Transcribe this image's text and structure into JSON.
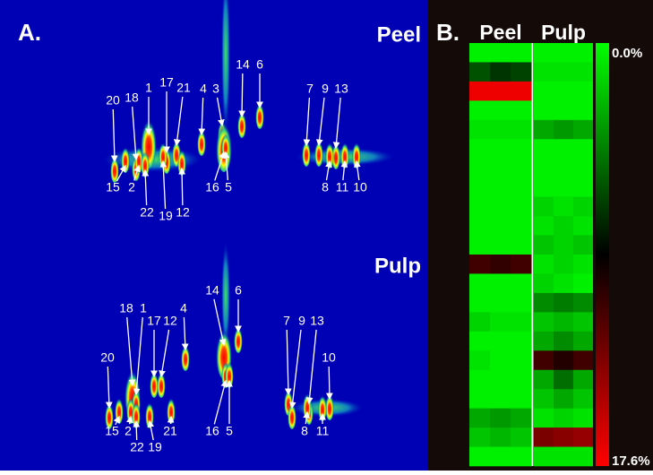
{
  "panel_a": {
    "label": "A.",
    "chromatograms": [
      {
        "title": "Peel",
        "peaks": [
          "20",
          "18",
          "1",
          "17",
          "21",
          "4",
          "3",
          "14",
          "6",
          "7",
          "9",
          "13",
          "15",
          "2",
          "22",
          "19",
          "12",
          "16",
          "5",
          "8",
          "11",
          "10"
        ]
      },
      {
        "title": "Pulp",
        "peaks": [
          "14",
          "6",
          "18",
          "1",
          "17",
          "12",
          "4",
          "7",
          "9",
          "13",
          "20",
          "10",
          "15",
          "2",
          "22",
          "19",
          "21",
          "16",
          "5",
          "8",
          "11"
        ]
      }
    ]
  },
  "panel_b": {
    "label": "B.",
    "columns": [
      "Peel",
      "Pulp"
    ],
    "colors": [
      "#00ff00",
      "#000000",
      "#ff0000"
    ],
    "colorbar": [
      {
        "value": 0,
        "label": "0.0%"
      },
      {
        "value": 17.6,
        "label": "17.6%"
      }
    ],
    "heatmap": [
      [
        0.5,
        0.5,
        0.5,
        0.5,
        0.5,
        0.5
      ],
      [
        6,
        7,
        6.5,
        1,
        1,
        1
      ],
      [
        17,
        17,
        17,
        0.5,
        0.5,
        0.5
      ],
      [
        0.5,
        0.5,
        0.5,
        0.5,
        0.5,
        0.5
      ],
      [
        1,
        1,
        1,
        3,
        3.5,
        3
      ],
      [
        0.5,
        0.5,
        0.5,
        0.5,
        0.5,
        0.5
      ],
      [
        0.5,
        0.5,
        0.5,
        0.5,
        0.5,
        0.5
      ],
      [
        0.5,
        0.5,
        0.5,
        0.5,
        0.5,
        0.5
      ],
      [
        0.5,
        0.5,
        0.5,
        1.5,
        1,
        1.5
      ],
      [
        0.5,
        0.5,
        0.5,
        1,
        1.5,
        1
      ],
      [
        0.5,
        0.5,
        0.5,
        2,
        1.5,
        2
      ],
      [
        11,
        10.5,
        11,
        1,
        1.5,
        1
      ],
      [
        0.5,
        0.5,
        0.5,
        1.5,
        1,
        0.5
      ],
      [
        0.5,
        0.5,
        0.5,
        4,
        4.5,
        4
      ],
      [
        1.5,
        1,
        1,
        2,
        2.5,
        2
      ],
      [
        0.5,
        0.5,
        0.5,
        3,
        4,
        3
      ],
      [
        1,
        0.5,
        0.5,
        11,
        10,
        11
      ],
      [
        0.5,
        0.5,
        0.5,
        3,
        5,
        3
      ],
      [
        0.5,
        0.5,
        0.5,
        2,
        3,
        2
      ],
      [
        3,
        3.5,
        3,
        1,
        1.5,
        1
      ],
      [
        2,
        2.5,
        2,
        13,
        13.5,
        14
      ],
      [
        0.5,
        0.5,
        0.5,
        1,
        1,
        1
      ]
    ]
  }
}
